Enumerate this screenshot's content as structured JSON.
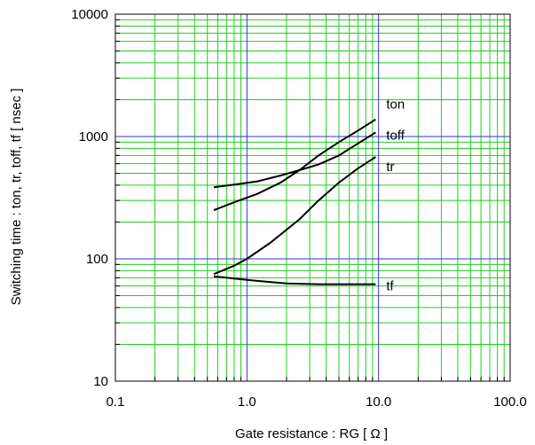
{
  "chart_data": {
    "type": "line",
    "title": "",
    "xlabel": "Gate resistance : RG [ Ω ]",
    "ylabel": "Switching time : ton, tr, toff, tf [ nsec ]",
    "xscale": "log",
    "yscale": "log",
    "xlim": [
      0.1,
      100
    ],
    "ylim": [
      10,
      10000
    ],
    "x_ticks": [
      0.1,
      1,
      10,
      100
    ],
    "x_tick_labels": [
      "0.1",
      "1.0",
      "10.0",
      "100.0"
    ],
    "y_ticks": [
      10,
      100,
      1000,
      10000
    ],
    "y_tick_labels": [
      "10",
      "100",
      "1000",
      "10000"
    ],
    "grid": true,
    "colors": {
      "major_grid": "#3333cc",
      "minor_grid": "#22cc22",
      "series": "#000000",
      "frame": "#000000"
    },
    "series": [
      {
        "name": "ton",
        "x": [
          0.56,
          0.8,
          1.2,
          1.8,
          2.5,
          3.5,
          5.0,
          7.0,
          9.5
        ],
        "y": [
          250,
          290,
          340,
          420,
          530,
          700,
          900,
          1120,
          1380
        ]
      },
      {
        "name": "toff",
        "x": [
          0.56,
          0.8,
          1.2,
          1.8,
          2.5,
          3.5,
          5.0,
          7.0,
          9.5
        ],
        "y": [
          385,
          405,
          430,
          480,
          530,
          590,
          700,
          880,
          1080
        ]
      },
      {
        "name": "tr",
        "x": [
          0.56,
          0.8,
          1.0,
          1.5,
          2.5,
          3.5,
          5.0,
          7.0,
          9.5
        ],
        "y": [
          75,
          88,
          100,
          135,
          210,
          300,
          420,
          550,
          680
        ]
      },
      {
        "name": "tf",
        "x": [
          0.56,
          0.8,
          1.2,
          2.0,
          3.5,
          5.0,
          7.0,
          9.5
        ],
        "y": [
          72,
          69,
          66,
          63,
          62,
          62,
          62,
          62
        ]
      }
    ]
  }
}
